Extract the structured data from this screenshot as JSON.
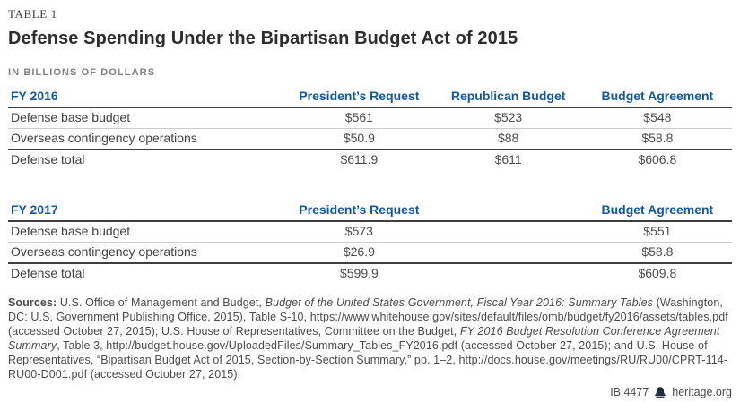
{
  "page": {
    "kicker": "TABLE 1",
    "title": "Defense Spending Under the Bipartisan Budget Act of 2015",
    "subtitle": "IN BILLIONS OF DOLLARS"
  },
  "colors": {
    "accent_blue": "#1257a0",
    "dark_rule": "#3e3e3e",
    "light_rule": "#cccccc",
    "title_text": "#2d2d2d",
    "body_text": "#4a4a4a",
    "subtitle_gray": "#818181"
  },
  "chart_data": [
    {
      "type": "table",
      "title": "FY 2016",
      "columns": [
        "President’s Request",
        "Republican Budget",
        "Budget Agreement"
      ],
      "rows": [
        {
          "label": "Defense base budget",
          "values": [
            "$561",
            "$523",
            "$548"
          ]
        },
        {
          "label": "Overseas contingency operations",
          "values": [
            "$50.9",
            "$88",
            "$58.8"
          ]
        },
        {
          "label": "Defense total",
          "values": [
            "$611.9",
            "$611",
            "$606.8"
          ]
        }
      ]
    },
    {
      "type": "table",
      "title": "FY 2017",
      "columns": [
        "President’s Request",
        "",
        "Budget Agreement"
      ],
      "rows": [
        {
          "label": "Defense base budget",
          "values": [
            "$573",
            "",
            "$551"
          ]
        },
        {
          "label": "Overseas contingency operations",
          "values": [
            "$26.9",
            "",
            "$58.8"
          ]
        },
        {
          "label": "Defense total",
          "values": [
            "$599.9",
            "",
            "$609.8"
          ]
        }
      ]
    }
  ],
  "sources": {
    "segments": [
      {
        "t": "Sources:",
        "b": true
      },
      {
        "t": " U.S. Office of Management and Budget, "
      },
      {
        "t": "Budget of the United States Government, Fiscal Year 2016: Summary Tables",
        "i": true
      },
      {
        "t": " (Washington, DC: U.S. Government Publishing Office, 2015), Table S-10, https://www.whitehouse.gov/sites/default/files/omb/budget/fy2016/assets/tables.pdf (accessed October 27, 2015); U.S. House of Representatives, Committee on the Budget, "
      },
      {
        "t": "FY 2016 Budget Resolution Conference Agreement Summary",
        "i": true
      },
      {
        "t": ", Table 3, http://budget.house.gov/UploadedFiles/Summary_Tables_FY2016.pdf (accessed October 27, 2015); and U.S. House of Representatives, “Bipartisan Budget Act of 2015, Section-by-Section Summary,” pp. 1–2, http://docs.house.gov/meetings/RU/RU00/CPRT-114-RU00-D001.pdf (accessed October 27, 2015)."
      }
    ]
  },
  "footer": {
    "doc_id": "IB 4477",
    "site": "heritage.org",
    "logo_icon": "liberty-bell-icon"
  }
}
